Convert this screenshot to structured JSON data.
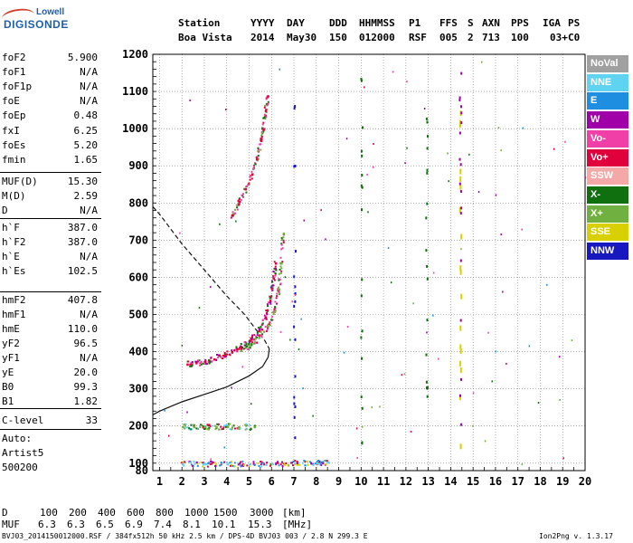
{
  "logo": {
    "top": "Lowell",
    "bottom": "DIGISONDE"
  },
  "header": {
    "labels": [
      "Station",
      "YYYY",
      "DAY",
      "DDD",
      "HHMMSS",
      "P1",
      "FFS",
      "S",
      "AXN",
      "PPS",
      "IGA",
      "PS"
    ],
    "values": [
      "Boa Vista",
      "2014",
      "May30",
      "150",
      "012000",
      "RSF",
      "005",
      "2",
      "713",
      "100",
      "03+",
      "C0"
    ]
  },
  "params": [
    {
      "k": "foF2",
      "v": "5.900"
    },
    {
      "k": "foF1",
      "v": "N/A"
    },
    {
      "k": "foF1p",
      "v": "N/A"
    },
    {
      "k": "foE",
      "v": "N/A"
    },
    {
      "k": "foEp",
      "v": "0.48"
    },
    {
      "k": "fxI",
      "v": "6.25"
    },
    {
      "k": "foEs",
      "v": "5.20"
    },
    {
      "k": "fmin",
      "v": "1.65"
    },
    {
      "k": "MUF(D)",
      "v": "15.30"
    },
    {
      "k": "M(D)",
      "v": "2.59"
    },
    {
      "k": "D",
      "v": "N/A"
    },
    {
      "k": "h`F",
      "v": "387.0"
    },
    {
      "k": "h`F2",
      "v": "387.0"
    },
    {
      "k": "h`E",
      "v": "N/A"
    },
    {
      "k": "h`Es",
      "v": "102.5"
    },
    {
      "k": "hmF2",
      "v": "407.8"
    },
    {
      "k": "hmF1",
      "v": "N/A"
    },
    {
      "k": "hmE",
      "v": "110.0"
    },
    {
      "k": "yF2",
      "v": "96.5"
    },
    {
      "k": "yF1",
      "v": "N/A"
    },
    {
      "k": "yE",
      "v": "20.0"
    },
    {
      "k": "B0",
      "v": "99.3"
    },
    {
      "k": "B1",
      "v": "1.82"
    },
    {
      "k": "C-level",
      "v": "33"
    },
    {
      "k": "Auto:",
      "v": ""
    },
    {
      "k": "Artist5",
      "v": ""
    },
    {
      "k": "500200",
      "v": ""
    }
  ],
  "legend": [
    {
      "label": "NoVal",
      "color": "#a0a0a0"
    },
    {
      "label": "NNE",
      "color": "#5fd3f0"
    },
    {
      "label": "E",
      "color": "#1e8fe0"
    },
    {
      "label": "W",
      "color": "#a000a8"
    },
    {
      "label": "Vo-",
      "color": "#f040a8"
    },
    {
      "label": "Vo+",
      "color": "#e0003c"
    },
    {
      "label": "SSW",
      "color": "#f5a8a8"
    },
    {
      "label": "X-",
      "color": "#107010"
    },
    {
      "label": "X+",
      "color": "#70b040"
    },
    {
      "label": "SSE",
      "color": "#d8d000"
    },
    {
      "label": "NNW",
      "color": "#1818c0"
    }
  ],
  "muf_table": {
    "d_label": "D",
    "d_values": [
      "100",
      "200",
      "400",
      "600",
      "800",
      "1000",
      "1500",
      "3000"
    ],
    "d_unit": "[km]",
    "muf_label": "MUF",
    "muf_values": [
      "6.3",
      "6.3",
      "6.5",
      "6.9",
      "7.4",
      "8.1",
      "10.1",
      "15.3"
    ],
    "muf_unit": "[MHz]"
  },
  "footer": {
    "left": "BVJ03_2014150012000.RSF / 384fx512h 50 kHz 2.5 km / DPS-4D BVJ03 003 / 2.8 N 299.3 E",
    "right": "Ion2Png v. 1.3.17"
  },
  "chart_data": {
    "type": "scatter",
    "title": "",
    "xlabel": "",
    "ylabel": "",
    "xlim": [
      0.7,
      20.0
    ],
    "ylim": [
      80,
      1200
    ],
    "x_ticks": [
      1,
      2,
      3,
      4,
      5,
      6,
      7,
      8,
      9,
      10,
      11,
      12,
      13,
      14,
      15,
      16,
      17,
      18,
      19,
      20
    ],
    "y_ticks": [
      80,
      100,
      200,
      300,
      400,
      500,
      600,
      700,
      800,
      900,
      1000,
      1100,
      1200
    ],
    "grid": true,
    "series": [
      {
        "name": "O-trace (Vo+)",
        "points": [
          [
            2.2,
            368
          ],
          [
            2.6,
            372
          ],
          [
            3.0,
            376
          ],
          [
            3.4,
            382
          ],
          [
            3.8,
            392
          ],
          [
            4.2,
            402
          ],
          [
            4.6,
            415
          ],
          [
            5.0,
            432
          ],
          [
            5.4,
            458
          ],
          [
            5.7,
            495
          ],
          [
            5.9,
            540
          ],
          [
            6.05,
            600
          ],
          [
            6.15,
            640
          ]
        ]
      },
      {
        "name": "X-trace (X+)",
        "points": [
          [
            4.6,
            405
          ],
          [
            5.0,
            420
          ],
          [
            5.4,
            440
          ],
          [
            5.8,
            470
          ],
          [
            6.1,
            510
          ],
          [
            6.3,
            570
          ],
          [
            6.4,
            640
          ],
          [
            6.5,
            720
          ]
        ]
      },
      {
        "name": "Multiple hop",
        "points": [
          [
            4.2,
            770
          ],
          [
            4.5,
            800
          ],
          [
            4.8,
            840
          ],
          [
            5.1,
            880
          ],
          [
            5.3,
            920
          ],
          [
            5.5,
            970
          ],
          [
            5.6,
            1000
          ],
          [
            5.7,
            1050
          ],
          [
            5.8,
            1090
          ]
        ]
      },
      {
        "name": "Es layer",
        "points": [
          [
            2.0,
            200
          ],
          [
            2.5,
            200
          ],
          [
            3.0,
            200
          ],
          [
            3.5,
            200
          ],
          [
            4.0,
            200
          ],
          [
            4.5,
            200
          ],
          [
            5.2,
            200
          ]
        ]
      },
      {
        "name": "Low echoes",
        "points": [
          [
            2.0,
            100
          ],
          [
            3.0,
            100
          ],
          [
            4.0,
            100
          ],
          [
            5.0,
            100
          ],
          [
            6.0,
            100
          ],
          [
            7.0,
            102
          ],
          [
            8.0,
            103
          ],
          [
            8.5,
            104
          ]
        ]
      }
    ],
    "profile_solid": [
      [
        0.7,
        230
      ],
      [
        1.0,
        240
      ],
      [
        2.0,
        265
      ],
      [
        3.0,
        285
      ],
      [
        4.0,
        305
      ],
      [
        5.0,
        335
      ],
      [
        5.6,
        360
      ],
      [
        5.85,
        385
      ],
      [
        5.9,
        407.8
      ]
    ],
    "profile_dashed": [
      [
        0.7,
        790
      ],
      [
        1.0,
        770
      ],
      [
        2.0,
        690
      ],
      [
        3.0,
        620
      ],
      [
        4.0,
        550
      ],
      [
        4.8,
        500
      ],
      [
        5.3,
        460
      ],
      [
        5.7,
        430
      ],
      [
        5.9,
        407.8
      ]
    ]
  }
}
